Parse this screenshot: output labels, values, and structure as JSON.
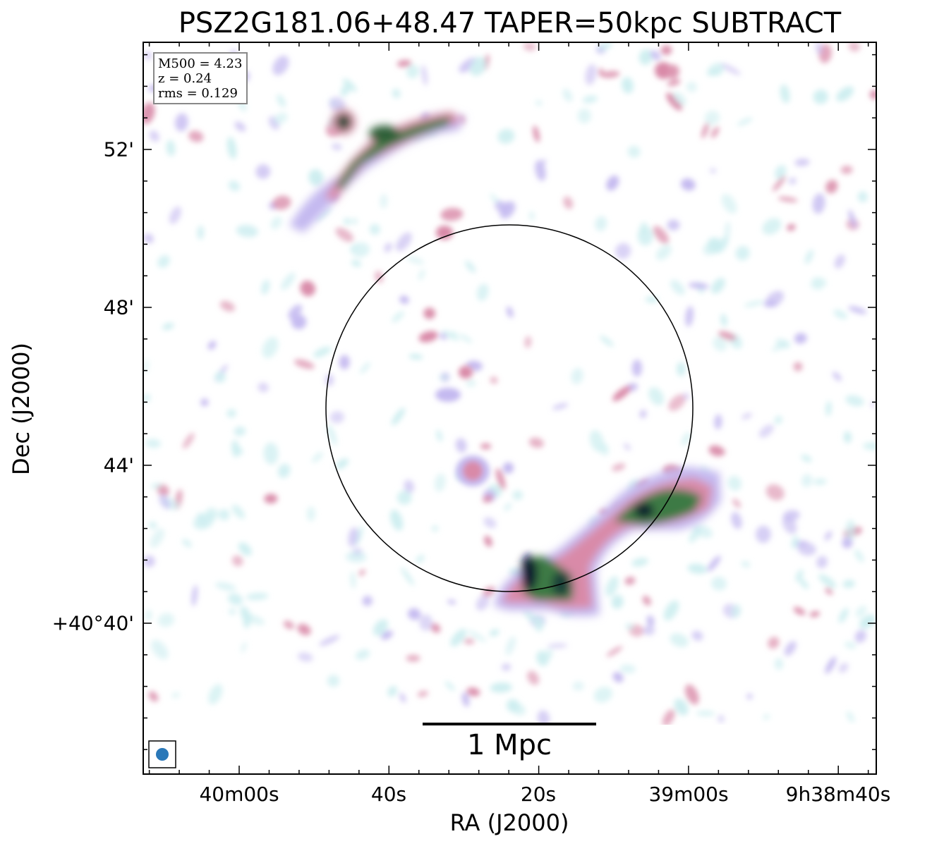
{
  "title": "PSZ2G181.06+48.47 TAPER=50kpc SUBTRACT",
  "axes": {
    "xlabel": "RA (J2000)",
    "ylabel": "Dec (J2000)",
    "xticks": [
      "40m00s",
      "40s",
      "20s",
      "39m00s",
      "9h38m40s"
    ],
    "yticks": [
      "52'",
      "48'",
      "44'",
      "+40°40'"
    ]
  },
  "info": {
    "m500": "M500 = 4.23",
    "z": "z = 0.24",
    "rms": "rms = 0.129"
  },
  "scalebar": {
    "label": "1 Mpc"
  },
  "colors": {
    "faint": "#cdeef0",
    "lavender": "#c4b9f0",
    "pink": "#d98aa8",
    "green": "#3e7a44",
    "core": "#0c1f2e",
    "beam": "#2a78b8"
  }
}
